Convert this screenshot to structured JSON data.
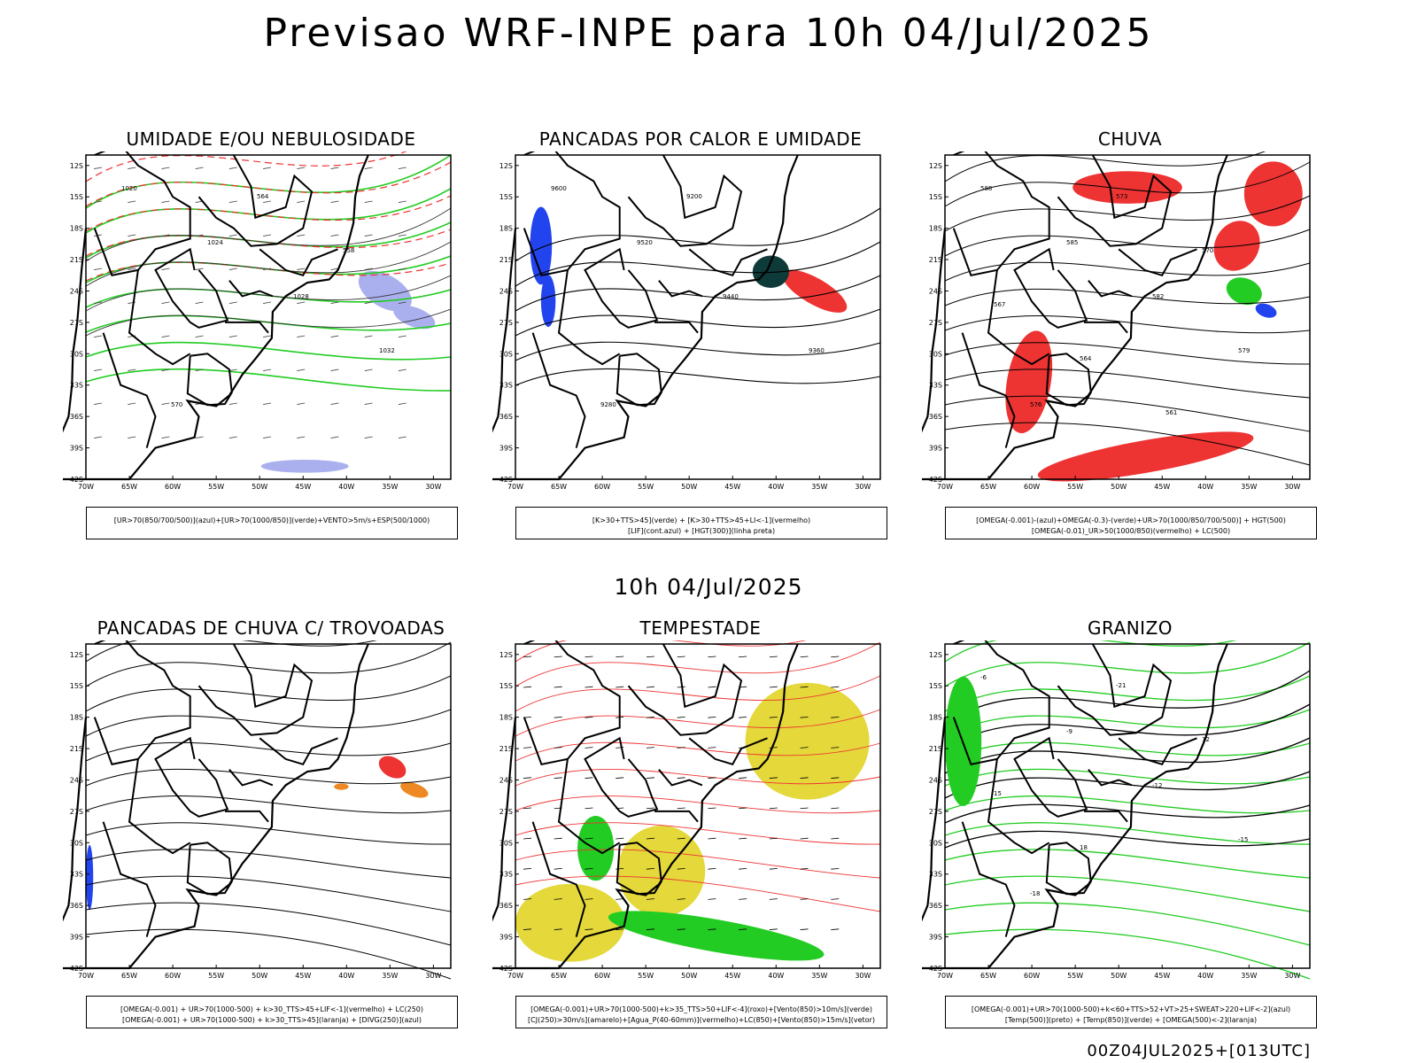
{
  "title": "Previsao WRF-INPE  para 10h 04/Jul/2025",
  "mid_date": "10h 04/Jul/2025",
  "footer": "00Z04JUL2025+[013UTC]",
  "axes": {
    "lat_labels": [
      "12S",
      "15S",
      "18S",
      "21S",
      "24S",
      "27S",
      "30S",
      "33S",
      "36S",
      "39S",
      "42S"
    ],
    "lon_labels": [
      "70W",
      "65W",
      "60W",
      "55W",
      "50W",
      "45W",
      "40W",
      "35W",
      "30W"
    ]
  },
  "panels": [
    {
      "title": "UMIDADE E/OU NEBULOSIDADE",
      "legend": [
        "[UR>70(850/700/500)](azul)+[UR>70(1000/850)](verde)+VENTO>5m/s+ESP(500/1000)"
      ],
      "labels": [
        "1020",
        "1024",
        "1028",
        "1032",
        "570",
        "564",
        "558"
      ]
    },
    {
      "title": "PANCADAS POR CALOR E UMIDADE",
      "legend": [
        "[K>30+TTS>45](verde) + [K>30+TTS>45+LI<-1](vermelho)",
        "[LIF](cont.azul) + [HGT(300)](linha preta)"
      ],
      "labels": [
        "9600",
        "9520",
        "9440",
        "9360",
        "9280",
        "9200"
      ]
    },
    {
      "title": "CHUVA",
      "legend": [
        "[OMEGA(-0.001)-(azul)+OMEGA(-0.3)-(verde)+UR>70(1000/850/700/500)] + HGT(500)",
        "[OMEGA(-0.01)_UR>50(1000/850)(vermelho) + LC(500)"
      ],
      "labels": [
        "588",
        "585",
        "582",
        "579",
        "576",
        "573",
        "570",
        "567",
        "564",
        "561"
      ]
    },
    {
      "title": "PANCADAS DE CHUVA C/ TROVOADAS",
      "legend": [
        "[OMEGA(-0.001) + UR>70(1000-500) + k>30_TTS>45+LIF<-1](vermelho) + LC(250)",
        "[OMEGA(-0.001) + UR>70(1000-500) + k>30_TTS>45](laranja) + [DIVG(250)](azul)"
      ],
      "labels": []
    },
    {
      "title": "TEMPESTADE",
      "legend": [
        "[OMEGA(-0.001)+UR>70(1000-500)+k>35_TTS>50+LIF<-4](roxo)+[Vento(850)>10m/s](verde)",
        "[CJ(250)>30m/s](amarelo)+[Agua_P(40-60mm)](vermelho)+LC(850)+[Vento(850)>15m/s](vetor)"
      ],
      "labels": []
    },
    {
      "title": "GRANIZO",
      "legend": [
        "[OMEGA(-0.001)+UR>70(1000-500)+k<60+TTS>52+VT>25+SWEAT>220+LIF<-2](azul)",
        "[Temp(500)](preto) + [Temp(850)](verde) + [OMEGA(500)<-2](laranja)"
      ],
      "labels": [
        "-6",
        "-9",
        "-12",
        "-15",
        "-18",
        "-21",
        "12",
        "15",
        "18"
      ]
    }
  ],
  "colors": {
    "red": "#ee3333",
    "green": "#22cc22",
    "blue": "#2244ee",
    "yellow": "#e4d83a",
    "orange": "#ee8822",
    "darkteal": "#0f3a3a",
    "lavender": "#aab0ee"
  }
}
